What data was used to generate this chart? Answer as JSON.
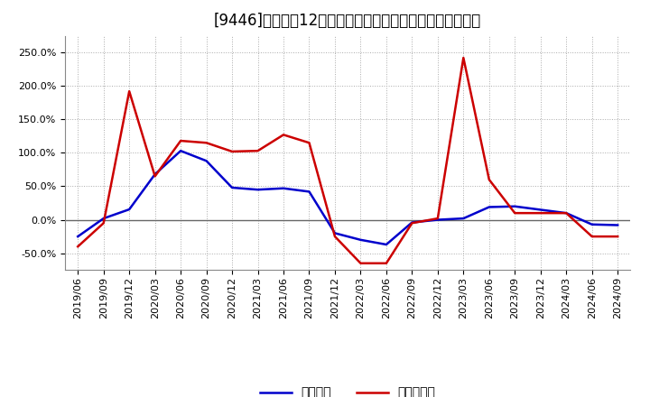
{
  "title": "[9446]　利益の12か月移動合計の対前年同期増減率の推移",
  "x_labels": [
    "2019/06",
    "2019/09",
    "2019/12",
    "2020/03",
    "2020/06",
    "2020/09",
    "2020/12",
    "2021/03",
    "2021/06",
    "2021/09",
    "2021/12",
    "2022/03",
    "2022/06",
    "2022/09",
    "2022/12",
    "2023/03",
    "2023/06",
    "2023/09",
    "2023/12",
    "2024/03",
    "2024/06",
    "2024/09"
  ],
  "keijo_rieki": [
    -0.25,
    0.02,
    0.155,
    0.68,
    1.03,
    0.88,
    0.48,
    0.45,
    0.47,
    0.42,
    -0.2,
    -0.3,
    -0.37,
    -0.04,
    0.0,
    0.02,
    0.19,
    0.2,
    0.15,
    0.1,
    -0.07,
    -0.08
  ],
  "touki_junseki": [
    -0.4,
    -0.05,
    1.92,
    0.65,
    1.18,
    1.15,
    1.02,
    1.03,
    1.27,
    1.15,
    -0.25,
    -0.65,
    -0.65,
    -0.05,
    0.02,
    2.42,
    0.6,
    0.1,
    0.1,
    0.1,
    -0.25,
    -0.25
  ],
  "keijo_color": "#0000cc",
  "touki_color": "#cc0000",
  "background_color": "#ffffff",
  "grid_color": "#aaaaaa",
  "ylim": [
    -0.75,
    2.75
  ],
  "yticks": [
    -0.5,
    0.0,
    0.5,
    1.0,
    1.5,
    2.0,
    2.5
  ],
  "legend_keijo": "経常利益",
  "legend_touki": "当期純利益",
  "title_fontsize": 12,
  "axis_fontsize": 8,
  "legend_fontsize": 10
}
